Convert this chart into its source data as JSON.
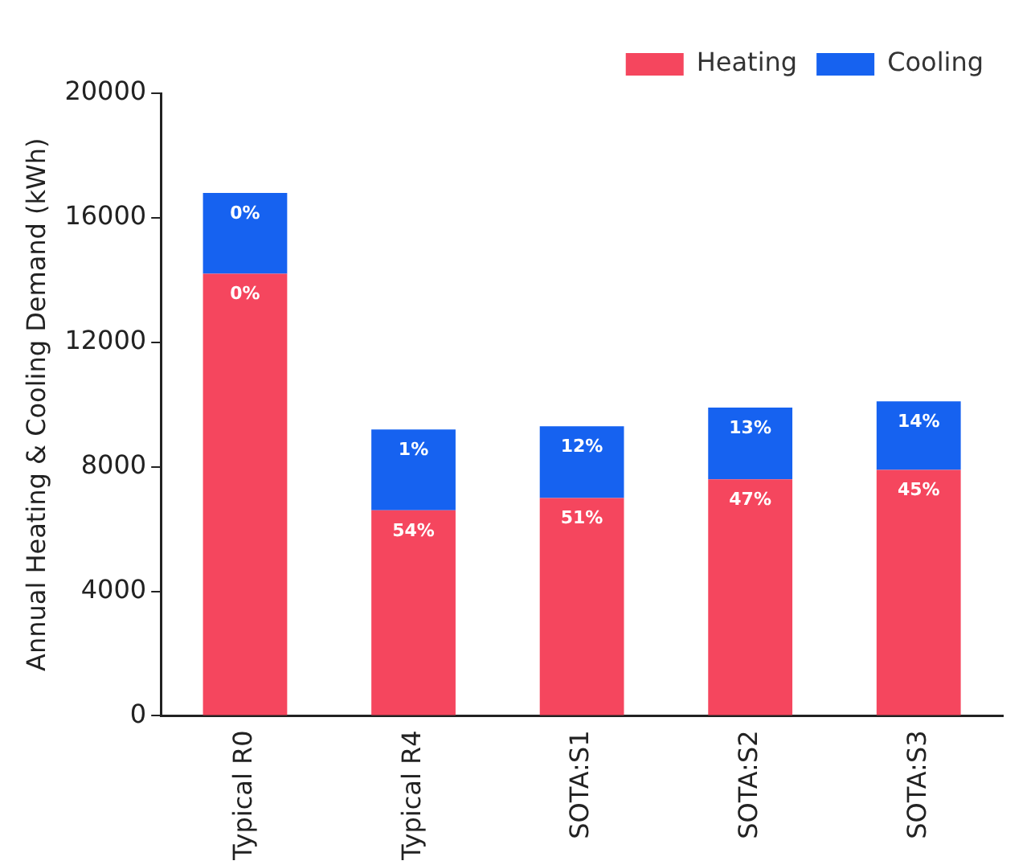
{
  "chart_data": {
    "type": "bar",
    "stacked": true,
    "ylabel": "Annual Heating & Cooling Demand (kWh)",
    "categories": [
      "Typical R0",
      "Typical R4",
      "SOTA:S1",
      "SOTA:S2",
      "SOTA:S3"
    ],
    "series": [
      {
        "name": "Heating",
        "color": "#f5465e",
        "values": [
          14200,
          6600,
          7000,
          7600,
          7900
        ]
      },
      {
        "name": "Cooling",
        "color": "#1662f0",
        "values": [
          2600,
          2600,
          2300,
          2300,
          2200
        ]
      }
    ],
    "annotations": [
      {
        "text": "0%",
        "x": "Typical R0",
        "y": 14200
      },
      {
        "text": "54%",
        "x": "Typical R4",
        "y": 6600
      },
      {
        "text": "51%",
        "x": "SOTA:S1",
        "y": 7000
      },
      {
        "text": "47%",
        "x": "SOTA:S2",
        "y": 7600
      },
      {
        "text": "45%",
        "x": "SOTA:S3",
        "y": 7900
      },
      {
        "text": "0%",
        "x": "Typical R0",
        "y": 16800
      },
      {
        "text": "1%",
        "x": "Typical R4",
        "y": 9200
      },
      {
        "text": "12%",
        "x": "SOTA:S1",
        "y": 9300
      },
      {
        "text": "13%",
        "x": "SOTA:S2",
        "y": 9900
      },
      {
        "text": "14%",
        "x": "SOTA:S3",
        "y": 10100
      }
    ],
    "ylim": [
      0,
      20000
    ],
    "yticks": [
      0,
      4000,
      8000,
      12000,
      16000,
      20000
    ],
    "grid": false,
    "legend": "top right"
  }
}
